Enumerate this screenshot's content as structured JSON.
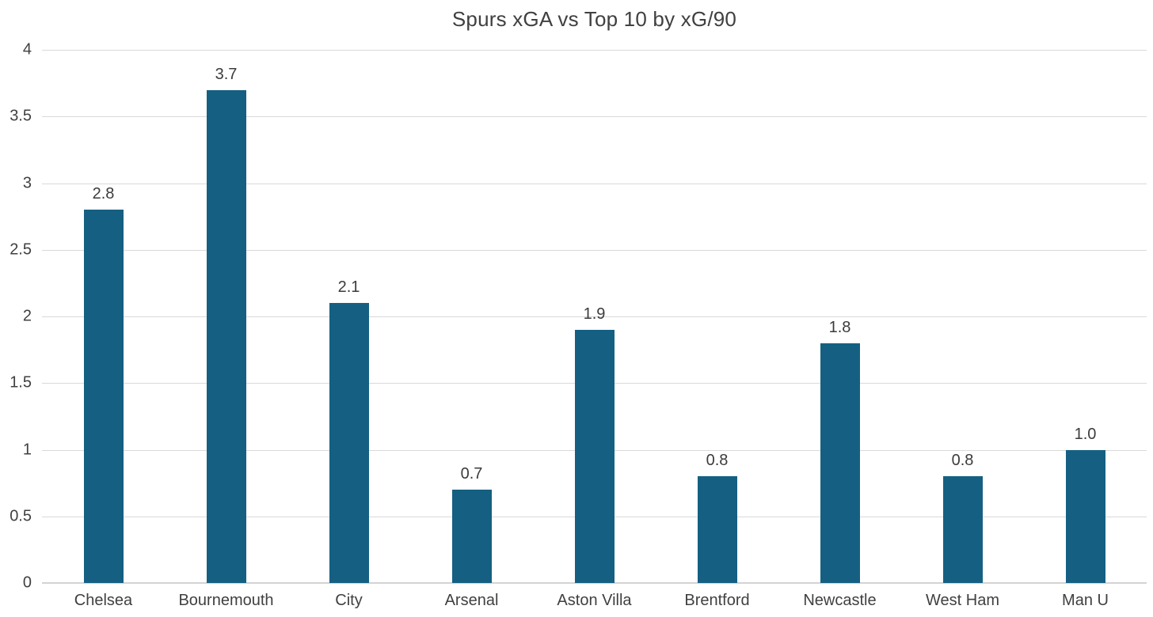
{
  "chart_data": {
    "type": "bar",
    "title": "Spurs xGA vs Top 10 by xG/90",
    "categories": [
      "Chelsea",
      "Bournemouth",
      "City",
      "Arsenal",
      "Aston Villa",
      "Brentford",
      "Newcastle",
      "West Ham",
      "Man U"
    ],
    "values": [
      2.8,
      3.7,
      2.1,
      0.7,
      1.9,
      0.8,
      1.8,
      0.8,
      1.0
    ],
    "value_labels": [
      "2.8",
      "3.7",
      "2.1",
      "0.7",
      "1.9",
      "0.8",
      "1.8",
      "0.8",
      "1.0"
    ],
    "xlabel": "",
    "ylabel": "",
    "ylim": [
      0,
      4
    ],
    "yticks": [
      {
        "value": 0,
        "label": "0"
      },
      {
        "value": 0.5,
        "label": "0.5"
      },
      {
        "value": 1,
        "label": "1"
      },
      {
        "value": 1.5,
        "label": "1.5"
      },
      {
        "value": 2,
        "label": "2"
      },
      {
        "value": 2.5,
        "label": "2.5"
      },
      {
        "value": 3,
        "label": "3"
      },
      {
        "value": 3.5,
        "label": "3.5"
      },
      {
        "value": 4,
        "label": "4"
      }
    ],
    "grid": "horizontal",
    "legend": "none",
    "colors": {
      "bar": "#156082",
      "gridline": "#d9d9d9",
      "axis_line": "#d3d3d3",
      "title_text": "#404040",
      "tick_text": "#404040",
      "data_label_text": "#3b3b3b"
    }
  }
}
